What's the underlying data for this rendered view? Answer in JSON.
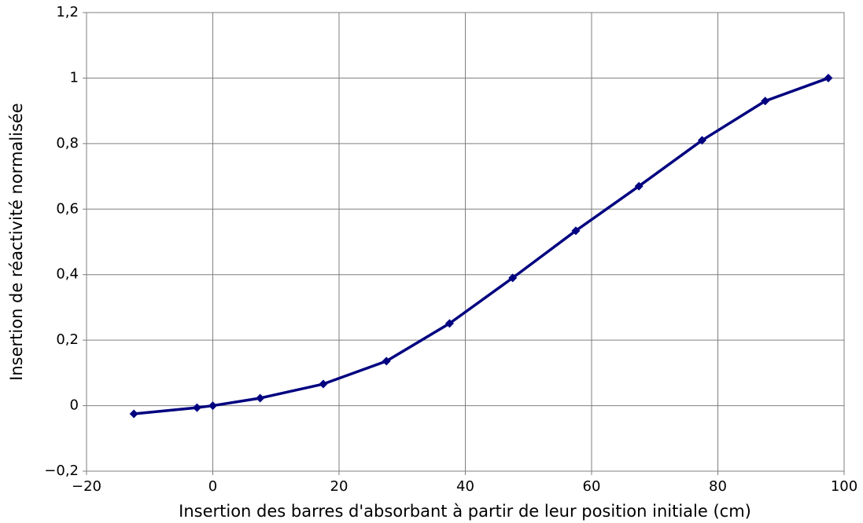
{
  "chart_data": {
    "type": "line",
    "x_label": "Insertion des barres d'absorbant à partir de leur position initiale (cm)",
    "y_label": "Insertion de réactivité normalisée",
    "x": [
      -12.5,
      -2.5,
      0,
      7.5,
      17.5,
      27.5,
      37.5,
      47.5,
      57.5,
      67.5,
      77.5,
      87.5,
      97.5
    ],
    "series": [
      {
        "color": "#000080",
        "values": [
          -0.025,
          -0.006,
          0,
          0.023,
          0.066,
          0.136,
          0.251,
          0.39,
          0.534,
          0.67,
          0.81,
          0.93,
          1.0
        ]
      }
    ],
    "xlim": [
      -20,
      100
    ],
    "xticks": [
      {
        "value": -20,
        "label": "−20"
      },
      0,
      20,
      40,
      60,
      80,
      100
    ],
    "ylim": [
      -0.2,
      1.2
    ],
    "yticks": [
      {
        "value": -0.2,
        "label": "−0,2"
      },
      0,
      {
        "value": 0.2,
        "label": "0,2"
      },
      {
        "value": 0.4,
        "label": "0,4"
      },
      {
        "value": 0.6,
        "label": "0,6"
      },
      {
        "value": 0.8,
        "label": "0,8"
      },
      1,
      {
        "value": 1.2,
        "label": "1,2"
      }
    ],
    "grid": true
  }
}
